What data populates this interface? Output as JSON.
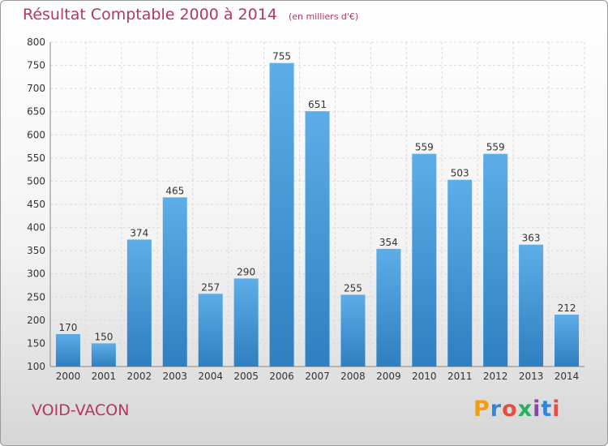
{
  "title": {
    "main": "Résultat Comptable 2000 à 2014",
    "unit": "(en milliers d'€)"
  },
  "commune": "VOID-VACON",
  "logo": "Proxiti",
  "colors": {
    "title": "#b5365e",
    "bar_top": "#5dade8",
    "bar_bottom": "#2f7fc1"
  },
  "chart_data": {
    "type": "bar",
    "categories": [
      "2000",
      "2001",
      "2002",
      "2003",
      "2004",
      "2005",
      "2006",
      "2007",
      "2008",
      "2009",
      "2010",
      "2011",
      "2012",
      "2013",
      "2014"
    ],
    "values": [
      170,
      150,
      374,
      465,
      257,
      290,
      755,
      651,
      255,
      354,
      559,
      503,
      559,
      363,
      212
    ],
    "ylim": [
      100,
      800
    ],
    "yticks": [
      100,
      150,
      200,
      250,
      300,
      350,
      400,
      450,
      500,
      550,
      600,
      650,
      700,
      750,
      800
    ],
    "grid": true,
    "value_labels": true
  }
}
